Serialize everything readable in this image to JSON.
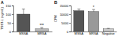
{
  "chart_data": [
    {
      "type": "bar",
      "title": "A",
      "y_label": "TSST-1 (ng/mL)",
      "categories": [
        "MSSA",
        "MRSA"
      ],
      "values": [
        100,
        15
      ],
      "errors": [
        30,
        8
      ],
      "colors": [
        "#555555",
        "#bbbbbb"
      ],
      "ylim": [
        0,
        150
      ],
      "yticks": [
        0,
        50,
        100,
        150
      ],
      "annotations": [
        {
          "text": "***",
          "x": "MRSA"
        }
      ]
    },
    {
      "type": "bar",
      "title": "B",
      "y_label": "CPM",
      "categories": [
        "MSSA",
        "MRSA",
        "Negative"
      ],
      "values": [
        12000,
        11500,
        1500
      ],
      "errors": [
        1000,
        1200,
        300
      ],
      "colors": [
        "#555555",
        "#999999",
        "#cccccc"
      ],
      "ylim": [
        0,
        15000
      ],
      "yticks": [
        0,
        5000,
        10000,
        15000
      ],
      "annotations": [
        {
          "text": "*",
          "x": "MRSA"
        }
      ]
    }
  ]
}
